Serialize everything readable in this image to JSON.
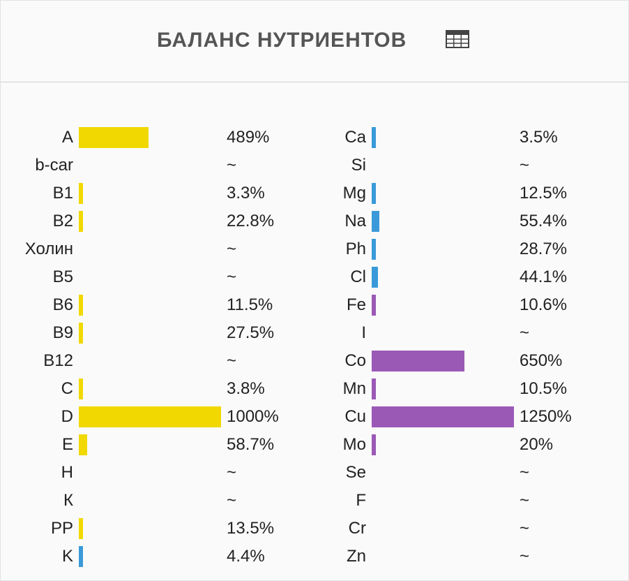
{
  "header": {
    "title": "БАЛАНС НУТРИЕНТОВ",
    "table_icon": "table-icon"
  },
  "colors": {
    "vitamin": "#f0d800",
    "mineral_blue": "#3a9ad9",
    "mineral_purple": "#9b59b6"
  },
  "chart_data": {
    "type": "bar",
    "title": "БАЛАНС НУТРИЕНТОВ",
    "orientation": "horizontal",
    "x_max_percent": 1000,
    "columns": [
      {
        "rows": [
          {
            "label": "A",
            "value": 489,
            "display": "489%",
            "color": "vitamin"
          },
          {
            "label": "b-car",
            "value": null,
            "display": "~",
            "color": "vitamin"
          },
          {
            "label": "B1",
            "value": 3.3,
            "display": "3.3%",
            "color": "vitamin"
          },
          {
            "label": "B2",
            "value": 22.8,
            "display": "22.8%",
            "color": "vitamin"
          },
          {
            "label": "Холин",
            "value": null,
            "display": "~",
            "color": "vitamin"
          },
          {
            "label": "B5",
            "value": null,
            "display": "~",
            "color": "vitamin"
          },
          {
            "label": "B6",
            "value": 11.5,
            "display": "11.5%",
            "color": "vitamin"
          },
          {
            "label": "B9",
            "value": 27.5,
            "display": "27.5%",
            "color": "vitamin"
          },
          {
            "label": "B12",
            "value": null,
            "display": "~",
            "color": "vitamin"
          },
          {
            "label": "C",
            "value": 3.8,
            "display": "3.8%",
            "color": "vitamin"
          },
          {
            "label": "D",
            "value": 1000,
            "display": "1000%",
            "color": "vitamin"
          },
          {
            "label": "E",
            "value": 58.7,
            "display": "58.7%",
            "color": "vitamin"
          },
          {
            "label": "H",
            "value": null,
            "display": "~",
            "color": "vitamin"
          },
          {
            "label": "К",
            "value": null,
            "display": "~",
            "color": "vitamin"
          },
          {
            "label": "PP",
            "value": 13.5,
            "display": "13.5%",
            "color": "vitamin"
          },
          {
            "label": "K",
            "value": 4.4,
            "display": "4.4%",
            "color": "mineral_blue"
          }
        ]
      },
      {
        "rows": [
          {
            "label": "Ca",
            "value": 3.5,
            "display": "3.5%",
            "color": "mineral_blue"
          },
          {
            "label": "Si",
            "value": null,
            "display": "~",
            "color": "mineral_blue"
          },
          {
            "label": "Mg",
            "value": 12.5,
            "display": "12.5%",
            "color": "mineral_blue"
          },
          {
            "label": "Na",
            "value": 55.4,
            "display": "55.4%",
            "color": "mineral_blue"
          },
          {
            "label": "Ph",
            "value": 28.7,
            "display": "28.7%",
            "color": "mineral_blue"
          },
          {
            "label": "Cl",
            "value": 44.1,
            "display": "44.1%",
            "color": "mineral_blue"
          },
          {
            "label": "Fe",
            "value": 10.6,
            "display": "10.6%",
            "color": "mineral_purple"
          },
          {
            "label": "I",
            "value": null,
            "display": "~",
            "color": "mineral_purple"
          },
          {
            "label": "Co",
            "value": 650,
            "display": "650%",
            "color": "mineral_purple"
          },
          {
            "label": "Mn",
            "value": 10.5,
            "display": "10.5%",
            "color": "mineral_purple"
          },
          {
            "label": "Cu",
            "value": 1250,
            "display": "1250%",
            "color": "mineral_purple"
          },
          {
            "label": "Mo",
            "value": 20,
            "display": "20%",
            "color": "mineral_purple"
          },
          {
            "label": "Se",
            "value": null,
            "display": "~",
            "color": "mineral_purple"
          },
          {
            "label": "F",
            "value": null,
            "display": "~",
            "color": "mineral_purple"
          },
          {
            "label": "Cr",
            "value": null,
            "display": "~",
            "color": "mineral_purple"
          },
          {
            "label": "Zn",
            "value": null,
            "display": "~",
            "color": "mineral_purple"
          }
        ]
      }
    ]
  }
}
